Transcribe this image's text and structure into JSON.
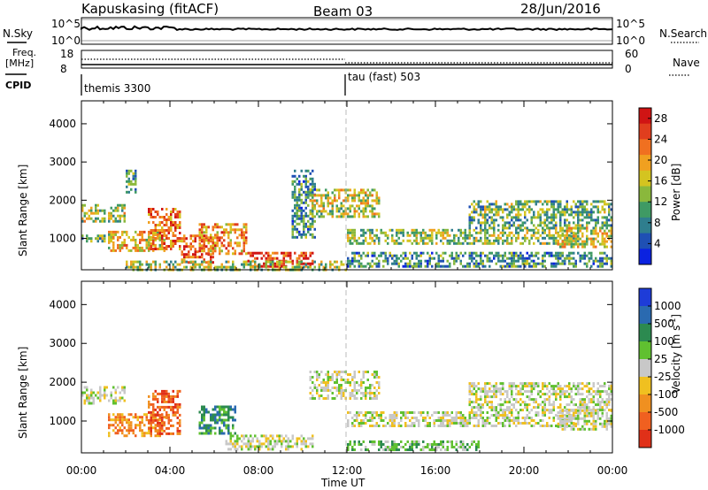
{
  "header": {
    "station": "Kapuskasing (fitACF)",
    "beam": "Beam 03",
    "date": "28/Jun/2016"
  },
  "panels": {
    "nsky": {
      "label": "N.Sky",
      "left_ticks": [
        "10^5",
        "10^0"
      ],
      "right_ticks": [
        "10^5",
        "10^0"
      ],
      "right_label": "N.Search"
    },
    "freq": {
      "label_lines": [
        "Freq.",
        "[MHz]"
      ],
      "left_ticks": [
        "18",
        "8"
      ],
      "right_ticks": [
        "60",
        "0"
      ],
      "right_label": "Nave"
    },
    "cpid": {
      "label": "CPID",
      "modes": [
        "themis 3300",
        "tau (fast) 503"
      ]
    }
  },
  "chart_data": [
    {
      "type": "heatmap",
      "name": "power",
      "xlabel": "",
      "ylabel": "Slant Range [km]",
      "x_ticks": [
        "00:00",
        "04:00",
        "08:00",
        "12:00",
        "16:00",
        "20:00",
        "00:00"
      ],
      "x_range_hours": [
        0,
        24
      ],
      "y_ticks": [
        1000,
        2000,
        3000,
        4000
      ],
      "ylim": [
        180,
        4600
      ],
      "colorbar": {
        "label": "Power [dB]",
        "ticks": [
          "4",
          "8",
          "12",
          "16",
          "20",
          "24",
          "28"
        ],
        "range": [
          0,
          30
        ],
        "colors": [
          "#0b22e0",
          "#1f50b4",
          "#2f7e8e",
          "#3f9a64",
          "#8ab83c",
          "#d4c420",
          "#f0a020",
          "#f07020",
          "#e03e1e",
          "#d01414"
        ]
      },
      "features": [
        {
          "t0": 0.0,
          "t1": 2.0,
          "r0": 1450,
          "r1": 1900,
          "level": 0.5
        },
        {
          "t0": 0.0,
          "t1": 1.5,
          "r0": 900,
          "r1": 1100,
          "level": 0.4
        },
        {
          "t0": 1.2,
          "t1": 3.8,
          "r0": 650,
          "r1": 1200,
          "level": 0.6
        },
        {
          "t0": 2.0,
          "t1": 2.5,
          "r0": 2200,
          "r1": 2800,
          "level": 0.35
        },
        {
          "t0": 3.0,
          "t1": 4.5,
          "r0": 700,
          "r1": 1800,
          "level": 0.75
        },
        {
          "t0": 4.5,
          "t1": 6.0,
          "r0": 350,
          "r1": 1100,
          "level": 0.8
        },
        {
          "t0": 5.3,
          "t1": 7.5,
          "r0": 600,
          "r1": 1400,
          "level": 0.7
        },
        {
          "t0": 7.5,
          "t1": 10.5,
          "r0": 250,
          "r1": 650,
          "level": 0.85
        },
        {
          "t0": 2.0,
          "t1": 12.0,
          "r0": 200,
          "r1": 420,
          "level": 0.45
        },
        {
          "t0": 9.5,
          "t1": 10.6,
          "r0": 1000,
          "r1": 2800,
          "level": 0.3
        },
        {
          "t0": 10.3,
          "t1": 13.5,
          "r0": 1600,
          "r1": 2300,
          "level": 0.5
        },
        {
          "t0": 12.0,
          "t1": 22.5,
          "r0": 850,
          "r1": 1250,
          "level": 0.45
        },
        {
          "t0": 12.0,
          "t1": 24.0,
          "r0": 250,
          "r1": 650,
          "level": 0.3
        },
        {
          "t0": 17.5,
          "t1": 24.0,
          "r0": 1300,
          "r1": 2000,
          "level": 0.4
        },
        {
          "t0": 21.5,
          "t1": 24.0,
          "r0": 800,
          "r1": 1300,
          "level": 0.55
        }
      ]
    },
    {
      "type": "heatmap",
      "name": "velocity",
      "xlabel": "Time UT",
      "ylabel": "Slant Range [km]",
      "x_ticks": [
        "00:00",
        "04:00",
        "08:00",
        "12:00",
        "16:00",
        "20:00",
        "00:00"
      ],
      "x_range_hours": [
        0,
        24
      ],
      "y_ticks": [
        1000,
        2000,
        3000,
        4000
      ],
      "ylim": [
        180,
        4600
      ],
      "colorbar": {
        "label": "Velocity [m s^-1]",
        "ticks": [
          "1000",
          "500",
          "100",
          "25",
          "-25",
          "-100",
          "-500",
          "-1000"
        ],
        "colors": [
          "#1e3cd8",
          "#2a6ab0",
          "#2c8a50",
          "#60c030",
          "#c8c8c8",
          "#f0c020",
          "#f09020",
          "#f06020",
          "#e03018"
        ]
      },
      "features": [
        {
          "t0": 0.0,
          "t1": 2.0,
          "r0": 1450,
          "r1": 1900,
          "level": 4
        },
        {
          "t0": 1.2,
          "t1": 3.8,
          "r0": 650,
          "r1": 1200,
          "level": 6
        },
        {
          "t0": 3.0,
          "t1": 4.5,
          "r0": 700,
          "r1": 1800,
          "level": 7
        },
        {
          "t0": 5.3,
          "t1": 7.0,
          "r0": 700,
          "r1": 1400,
          "level": 2
        },
        {
          "t0": 6.5,
          "t1": 10.5,
          "r0": 250,
          "r1": 650,
          "level": 4
        },
        {
          "t0": 10.3,
          "t1": 13.5,
          "r0": 1600,
          "r1": 2300,
          "level": 4
        },
        {
          "t0": 12.0,
          "t1": 22.5,
          "r0": 850,
          "r1": 1250,
          "level": 4
        },
        {
          "t0": 12.0,
          "t1": 18.0,
          "r0": 250,
          "r1": 500,
          "level": 3
        },
        {
          "t0": 17.5,
          "t1": 24.0,
          "r0": 1300,
          "r1": 2000,
          "level": 4
        },
        {
          "t0": 21.5,
          "t1": 24.0,
          "r0": 800,
          "r1": 1300,
          "level": 4
        }
      ]
    }
  ]
}
